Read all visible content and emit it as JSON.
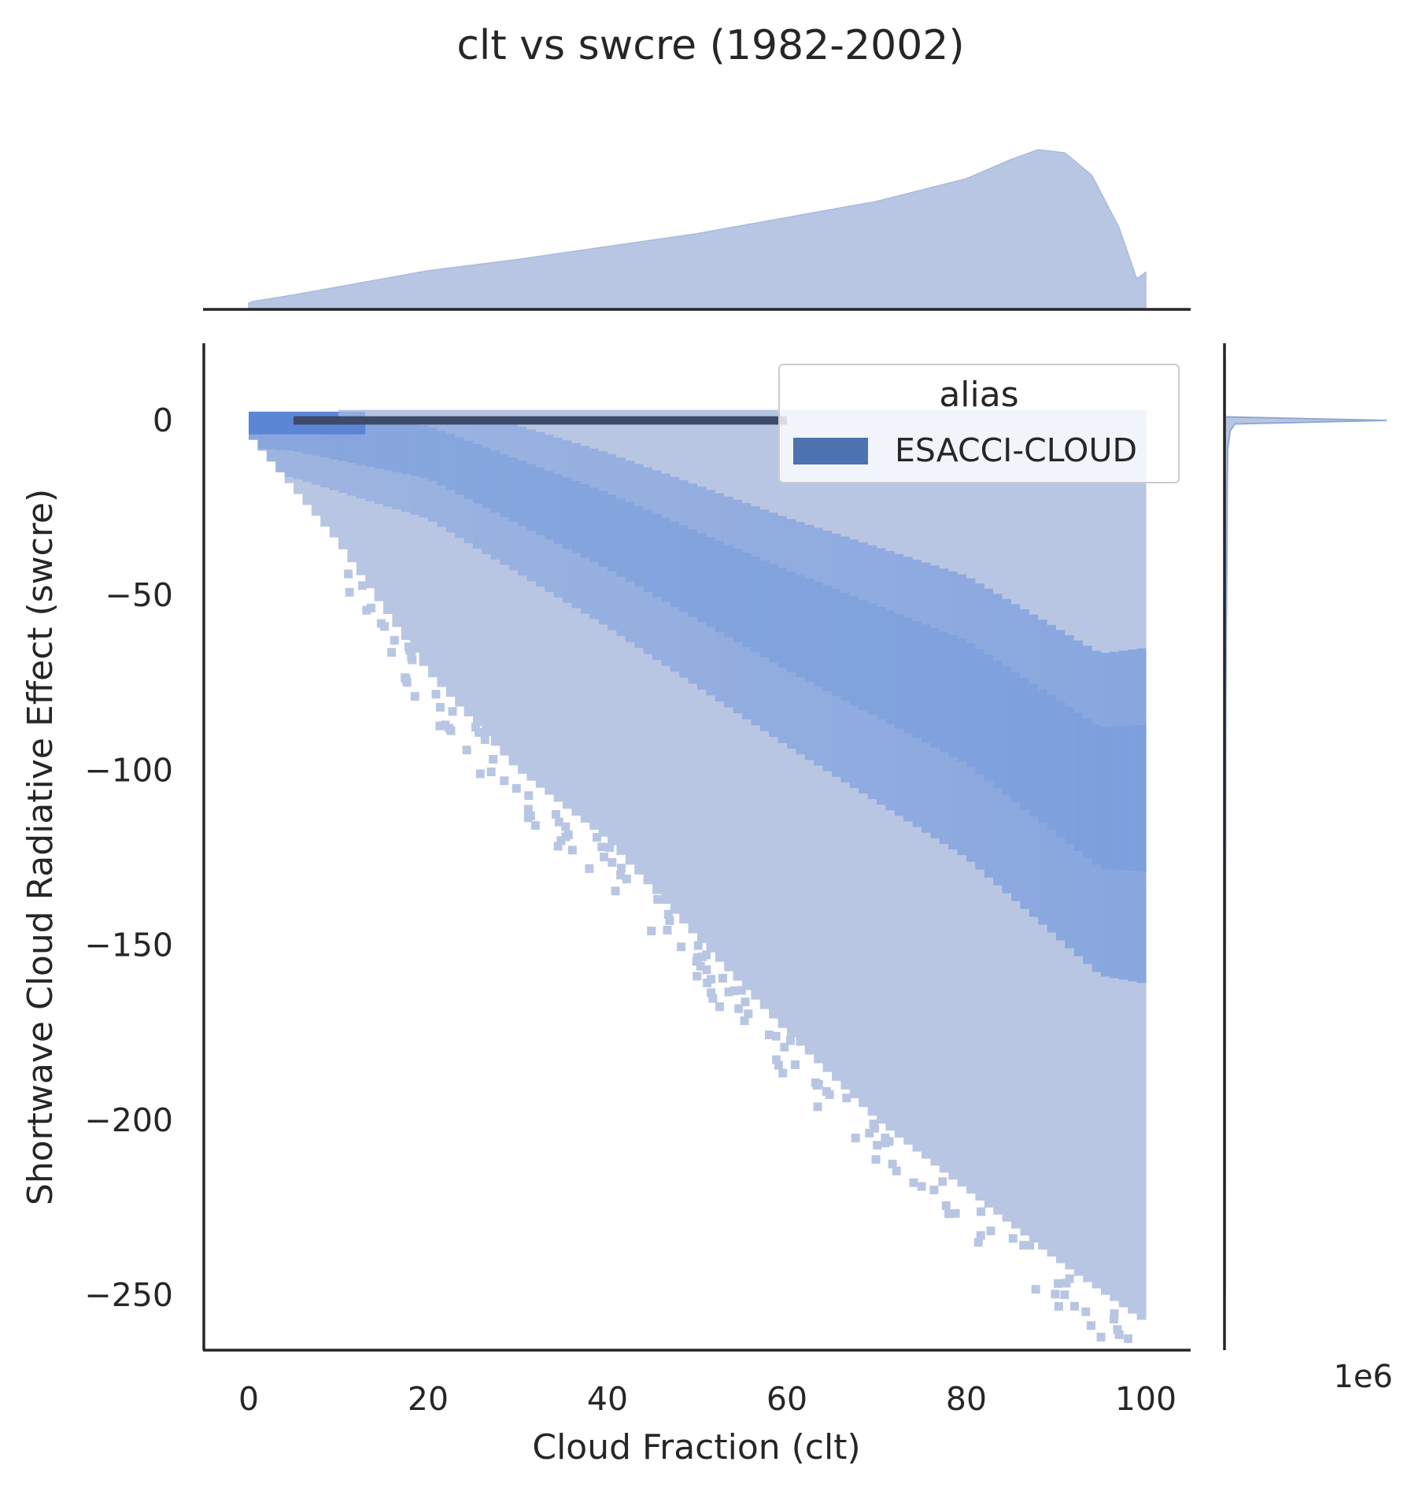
{
  "title": "clt vs swcre (1982-2002)",
  "chart_data": {
    "type": "heatmap",
    "subtype": "jointplot-2d-histogram-with-marginal-histograms",
    "title": "clt vs swcre (1982-2002)",
    "xlabel": "Cloud Fraction (clt)",
    "ylabel": "Shortwave Cloud Radiative Effect (swcre)",
    "xlim": [
      -5,
      105
    ],
    "ylim": [
      -270,
      20
    ],
    "x_ticks": [
      0,
      20,
      40,
      60,
      80,
      100
    ],
    "x_tick_labels": [
      "0",
      "20",
      "40",
      "60",
      "80",
      "100"
    ],
    "y_ticks": [
      0,
      -50,
      -100,
      -150,
      -200,
      -250
    ],
    "y_tick_labels": [
      "0",
      "−50",
      "−100",
      "−150",
      "−200",
      "−250"
    ],
    "right_marginal_offset_label": "1e6",
    "legend": {
      "title": "alias",
      "entries": [
        {
          "label": "ESACCI-CLOUD",
          "color": "#4c72b0"
        }
      ],
      "placement": "upper right"
    },
    "series_color": "#4c72b0",
    "heatmap_color_light": "#b9c6e3",
    "heatmap_color_dense": "#6e96dc",
    "heatmap_color_line": "#3d4a6a",
    "joint_density": {
      "support_lower_edge_swcre_at_clt": [
        [
          0,
          -4
        ],
        [
          10,
          -35
        ],
        [
          20,
          -72
        ],
        [
          30,
          -100
        ],
        [
          40,
          -120
        ],
        [
          50,
          -148
        ],
        [
          60,
          -175
        ],
        [
          70,
          -200
        ],
        [
          80,
          -220
        ],
        [
          90,
          -240
        ],
        [
          100,
          -258
        ]
      ],
      "high_density_ridge_swcre_at_clt": [
        [
          5,
          -3
        ],
        [
          20,
          -8
        ],
        [
          40,
          -30
        ],
        [
          60,
          -55
        ],
        [
          80,
          -78
        ],
        [
          95,
          -105
        ]
      ],
      "dense_band_at_swcre_0": [
        5,
        60
      ]
    },
    "marginal_x_density": {
      "x": [
        0,
        0.5,
        5,
        10,
        20,
        30,
        40,
        50,
        60,
        70,
        80,
        85,
        88,
        91,
        94,
        97,
        99,
        100
      ],
      "relative_height": [
        0.03,
        0.04,
        0.08,
        0.13,
        0.23,
        0.3,
        0.38,
        0.46,
        0.56,
        0.66,
        0.8,
        0.92,
        0.98,
        0.96,
        0.82,
        0.5,
        0.18,
        0.22
      ]
    },
    "marginal_y_density": {
      "y": [
        18,
        1,
        0,
        -1,
        -3,
        -8,
        -20,
        -40,
        -60,
        -80,
        -150,
        -250
      ],
      "relative_count": [
        0.0,
        0.0,
        1.0,
        0.06,
        0.03,
        0.015,
        0.012,
        0.01,
        0.006,
        0.003,
        0.0008,
        0.0
      ]
    }
  }
}
